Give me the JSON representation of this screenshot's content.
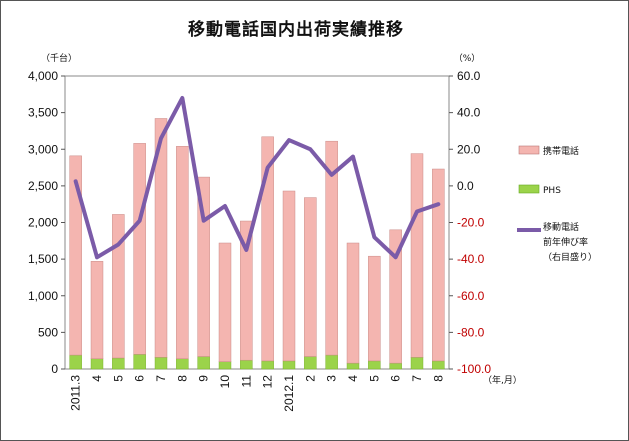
{
  "chart_data": {
    "type": "bar+line",
    "title": "移動電話国内出荷実績推移",
    "left_unit": "（千台）",
    "right_unit": "（%）",
    "x_unit": "（年,月）",
    "categories": [
      "2011.3",
      "4",
      "5",
      "6",
      "7",
      "8",
      "9",
      "10",
      "11",
      "12",
      "2012.1",
      "2",
      "3",
      "4",
      "5",
      "6",
      "7",
      "8"
    ],
    "left_axis": {
      "min": 0,
      "max": 4000,
      "ticks": [
        "0",
        "500",
        "1,000",
        "1,500",
        "2,000",
        "2,500",
        "3,000",
        "3,500",
        "4,000"
      ]
    },
    "right_axis": {
      "min": -100,
      "max": 60,
      "ticks": [
        "-100.0",
        "-80.0",
        "-60.0",
        "-40.0",
        "-20.0",
        "0.0",
        "20.0",
        "40.0",
        "60.0"
      ]
    },
    "series": [
      {
        "name": "携帯電話",
        "kind": "bar-stacked",
        "color": "#f4b5b0",
        "values": [
          2720,
          1330,
          1960,
          2880,
          3260,
          2900,
          2450,
          1620,
          1900,
          3060,
          2320,
          2170,
          2920,
          1640,
          1430,
          1820,
          2780,
          2620
        ]
      },
      {
        "name": "PHS",
        "kind": "bar-stacked",
        "color": "#9bd34a",
        "values": [
          190,
          140,
          150,
          200,
          160,
          140,
          170,
          100,
          120,
          110,
          110,
          170,
          190,
          80,
          110,
          80,
          160,
          110
        ]
      },
      {
        "name": "移動電話\n前年伸び率\n（右目盛り）",
        "kind": "line",
        "axis": "right",
        "color": "#7b5ba8",
        "values": [
          2.5,
          -39,
          -32,
          -19,
          26,
          48,
          -19,
          -11,
          -35,
          10,
          25,
          20,
          6,
          16,
          -28,
          -39,
          -14,
          -10
        ]
      }
    ],
    "legend": [
      "携帯電話",
      "PHS",
      "移動電話",
      "前年伸び率",
      "（右目盛り）"
    ],
    "grid": false,
    "legend_position": "right"
  }
}
